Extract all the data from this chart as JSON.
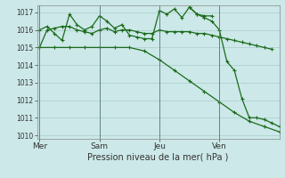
{
  "title": "Pression niveau de la mer( hPa )",
  "background_color": "#cce8e8",
  "grid_color": "#aacccc",
  "line_color": "#1a6b1a",
  "ylim": [
    1009.8,
    1017.4
  ],
  "yticks": [
    1010,
    1011,
    1012,
    1013,
    1014,
    1015,
    1016,
    1017
  ],
  "day_labels": [
    "Mer",
    "Sam",
    "Jeu",
    "Ven"
  ],
  "day_positions": [
    0,
    24,
    48,
    72
  ],
  "vline_positions": [
    0,
    24,
    48,
    72
  ],
  "xlim": [
    -1,
    96
  ],
  "series1_x": [
    0,
    3,
    6,
    9,
    12,
    15,
    18,
    21,
    24,
    27,
    30,
    33,
    36,
    39,
    42,
    45,
    48,
    51,
    54,
    57,
    60,
    63,
    66,
    69,
    72,
    75,
    78,
    81,
    84,
    87,
    90,
    93
  ],
  "series1_y": [
    1015.0,
    1016.0,
    1016.1,
    1016.2,
    1016.2,
    1016.0,
    1015.9,
    1015.8,
    1016.0,
    1016.1,
    1015.9,
    1016.0,
    1016.0,
    1015.9,
    1015.8,
    1015.8,
    1016.0,
    1015.9,
    1015.9,
    1015.9,
    1015.9,
    1015.8,
    1015.8,
    1015.7,
    1015.6,
    1015.5,
    1015.4,
    1015.3,
    1015.2,
    1015.1,
    1015.0,
    1014.9
  ],
  "series2_x": [
    0,
    3,
    6,
    9,
    12,
    15,
    18,
    21,
    24,
    27,
    30,
    33,
    36,
    39,
    42,
    45,
    48,
    51,
    54,
    57,
    60,
    63,
    66,
    69
  ],
  "series2_y": [
    1016.0,
    1016.2,
    1015.8,
    1015.4,
    1016.9,
    1016.3,
    1016.0,
    1016.2,
    1016.8,
    1016.5,
    1016.1,
    1016.3,
    1015.7,
    1015.6,
    1015.5,
    1015.5,
    1017.1,
    1016.9,
    1017.2,
    1016.7,
    1017.3,
    1016.9,
    1016.8,
    1016.8
  ],
  "series3_x": [
    0,
    6,
    12,
    18,
    24,
    30,
    36,
    42,
    48,
    54,
    60,
    66,
    72,
    78,
    84,
    90,
    96
  ],
  "series3_y": [
    1015.0,
    1015.0,
    1015.0,
    1015.0,
    1015.0,
    1015.0,
    1015.0,
    1014.8,
    1014.3,
    1013.7,
    1013.1,
    1012.5,
    1011.9,
    1011.3,
    1010.8,
    1010.5,
    1010.2
  ],
  "series4_x": [
    60,
    63,
    66,
    69,
    72,
    75,
    78,
    81,
    84,
    87,
    90,
    93,
    96
  ],
  "series4_y": [
    1017.3,
    1016.9,
    1016.7,
    1016.5,
    1016.0,
    1014.2,
    1013.7,
    1012.1,
    1011.0,
    1011.0,
    1010.9,
    1010.7,
    1010.5
  ]
}
